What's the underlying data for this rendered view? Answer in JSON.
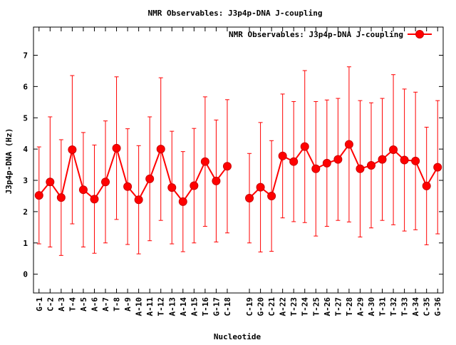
{
  "chart_data": {
    "type": "line",
    "title": "NMR Observables: J3p4p-DNA J-coupling",
    "xlabel": "Nucleotide",
    "ylabel": "J3p4p-DNA (Hz)",
    "ylim": [
      -0.6,
      7.9
    ],
    "yticks": [
      0,
      1,
      2,
      3,
      4,
      5,
      6,
      7
    ],
    "grid": false,
    "legend_position": "top-right",
    "colors": {
      "series": "#ff0000",
      "marker_stroke": "#cc0000",
      "axis": "#000000"
    },
    "categories": [
      "G-1",
      "C-2",
      "A-3",
      "T-4",
      "A-5",
      "A-6",
      "A-7",
      "T-8",
      "A-9",
      "A-10",
      "A-11",
      "T-12",
      "A-13",
      "A-14",
      "A-15",
      "T-16",
      "G-17",
      "C-18",
      "",
      "C-19",
      "G-20",
      "C-21",
      "A-22",
      "T-23",
      "T-24",
      "T-25",
      "A-26",
      "T-27",
      "T-28",
      "A-29",
      "A-30",
      "T-31",
      "T-32",
      "T-33",
      "A-34",
      "C-35",
      "G-36"
    ],
    "series": [
      {
        "name": "NMR Observables: J3p4p-DNA J-coupling",
        "values": [
          2.52,
          2.95,
          2.45,
          3.98,
          2.7,
          2.4,
          2.95,
          4.03,
          2.8,
          2.38,
          3.05,
          4.0,
          2.77,
          2.32,
          2.83,
          3.6,
          2.98,
          3.45,
          null,
          2.43,
          2.78,
          2.5,
          3.78,
          3.6,
          4.08,
          3.37,
          3.55,
          3.67,
          4.15,
          3.37,
          3.48,
          3.67,
          3.98,
          3.65,
          3.62,
          2.82,
          3.42
        ],
        "errors": [
          1.55,
          2.08,
          1.85,
          2.37,
          1.83,
          1.73,
          1.95,
          2.28,
          1.85,
          1.73,
          1.98,
          2.28,
          1.8,
          1.6,
          1.83,
          2.07,
          1.95,
          2.13,
          null,
          1.43,
          2.07,
          1.77,
          1.98,
          1.92,
          2.43,
          2.15,
          2.02,
          1.95,
          2.48,
          2.18,
          2.0,
          1.95,
          2.4,
          2.27,
          2.2,
          1.88,
          2.13
        ]
      }
    ]
  }
}
